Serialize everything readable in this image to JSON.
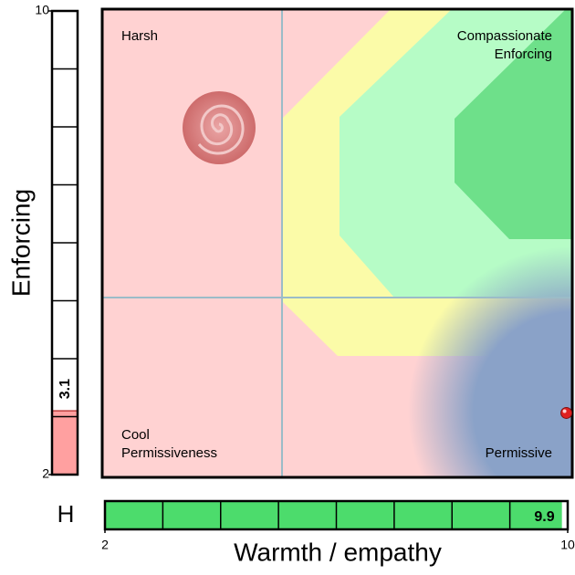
{
  "chart_data": {
    "type": "scatter",
    "x_label": "Warmth / empathy",
    "y_label": "Enforcing",
    "x_gauge_label": "H",
    "x": [
      9.9
    ],
    "y": [
      3.1
    ],
    "xlim": [
      2,
      10
    ],
    "ylim": [
      2,
      10
    ],
    "xticks": [
      2,
      10
    ],
    "yticks": [
      2,
      10
    ],
    "color": "#e02020",
    "quadrant_labels": {
      "top_left": [
        "Harsh"
      ],
      "top_right": [
        "Compassionate",
        "Enforcing"
      ],
      "bottom_left": [
        "Cool",
        "Permissiveness"
      ],
      "bottom_right": [
        "Permissive"
      ]
    },
    "y_gauge_color": "#ffa0a0",
    "x_gauge_color": "#4cdc6c"
  }
}
